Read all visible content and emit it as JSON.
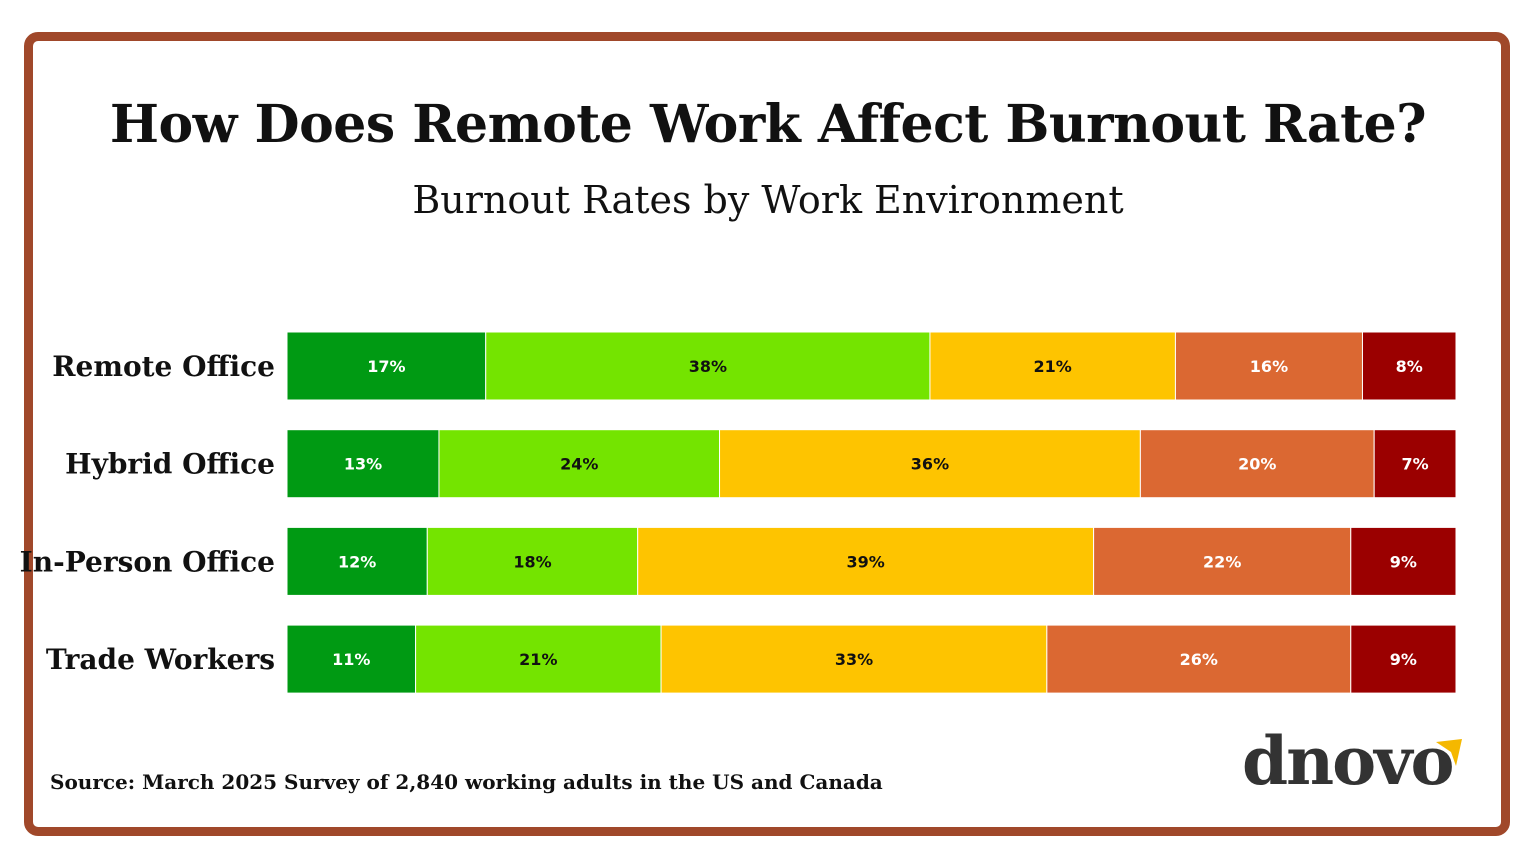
{
  "title": "How Does Remote Work Affect Burnout Rate?",
  "subtitle": "Burnout Rates by Work Environment",
  "source": "Source: March 2025 Survey of 2,840 working adults in the US and Canada",
  "logo": {
    "text": "dnovo",
    "accent": "#f5b800"
  },
  "frame_color": "#a0482a",
  "chart_data": {
    "type": "bar",
    "orientation": "horizontal",
    "stacked": true,
    "normalized_to": 100,
    "categories": [
      "Remote Office",
      "Hybrid Office",
      "In-Person Office",
      "Trade Workers"
    ],
    "series": [
      {
        "color": "#009a13",
        "label_color": "#ffffff",
        "values": [
          17,
          13,
          12,
          11
        ]
      },
      {
        "color": "#74e400",
        "label_color": "#111111",
        "values": [
          38,
          24,
          18,
          21
        ]
      },
      {
        "color": "#fec400",
        "label_color": "#111111",
        "values": [
          21,
          36,
          39,
          33
        ]
      },
      {
        "color": "#db6832",
        "label_color": "#ffffff",
        "values": [
          16,
          20,
          22,
          26
        ]
      },
      {
        "color": "#9b0000",
        "label_color": "#ffffff",
        "values": [
          8,
          7,
          9,
          9
        ]
      }
    ],
    "data_labels": [
      [
        "17%",
        "38%",
        "21%",
        "16%",
        "8%"
      ],
      [
        "13%",
        "24%",
        "36%",
        "20%",
        "7%"
      ],
      [
        "12%",
        "18%",
        "39%",
        "22%",
        "9%"
      ],
      [
        "11%",
        "21%",
        "33%",
        "26%",
        "9%"
      ]
    ],
    "legend": "none",
    "grid": false,
    "xlabel": "",
    "ylabel": ""
  }
}
